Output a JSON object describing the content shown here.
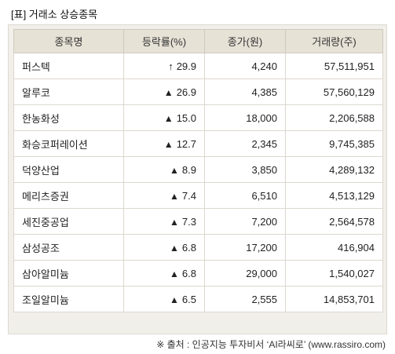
{
  "title": "[표] 거래소 상승종목",
  "columns": [
    "종목명",
    "등락률(%)",
    "종가(원)",
    "거래량(주)"
  ],
  "colors": {
    "up": "#d7282f",
    "header_bg": "#e7e2d6",
    "frame_bg": "#f1efe9"
  },
  "rows": [
    {
      "name": "퍼스텍",
      "mark": "↑",
      "mark_type": "upper-limit-arrow",
      "change": "29.9",
      "close": "4,240",
      "volume": "57,511,951"
    },
    {
      "name": "알루코",
      "mark": "▲",
      "mark_type": "up-triangle",
      "change": "26.9",
      "close": "4,385",
      "volume": "57,560,129"
    },
    {
      "name": "한농화성",
      "mark": "▲",
      "mark_type": "up-triangle",
      "change": "15.0",
      "close": "18,000",
      "volume": "2,206,588"
    },
    {
      "name": "화승코퍼레이션",
      "mark": "▲",
      "mark_type": "up-triangle",
      "change": "12.7",
      "close": "2,345",
      "volume": "9,745,385"
    },
    {
      "name": "덕양산업",
      "mark": "▲",
      "mark_type": "up-triangle",
      "change": "8.9",
      "close": "3,850",
      "volume": "4,289,132"
    },
    {
      "name": "메리츠증권",
      "mark": "▲",
      "mark_type": "up-triangle",
      "change": "7.4",
      "close": "6,510",
      "volume": "4,513,129"
    },
    {
      "name": "세진중공업",
      "mark": "▲",
      "mark_type": "up-triangle",
      "change": "7.3",
      "close": "7,200",
      "volume": "2,564,578"
    },
    {
      "name": "삼성공조",
      "mark": "▲",
      "mark_type": "up-triangle",
      "change": "6.8",
      "close": "17,200",
      "volume": "416,904"
    },
    {
      "name": "삼아알미늄",
      "mark": "▲",
      "mark_type": "up-triangle",
      "change": "6.8",
      "close": "29,000",
      "volume": "1,540,027"
    },
    {
      "name": "조일알미늄",
      "mark": "▲",
      "mark_type": "up-triangle",
      "change": "6.5",
      "close": "2,555",
      "volume": "14,853,701"
    }
  ],
  "source": "※ 출처 : 인공지능 투자비서 ‘AI라씨로’ (www.rassiro.com)"
}
